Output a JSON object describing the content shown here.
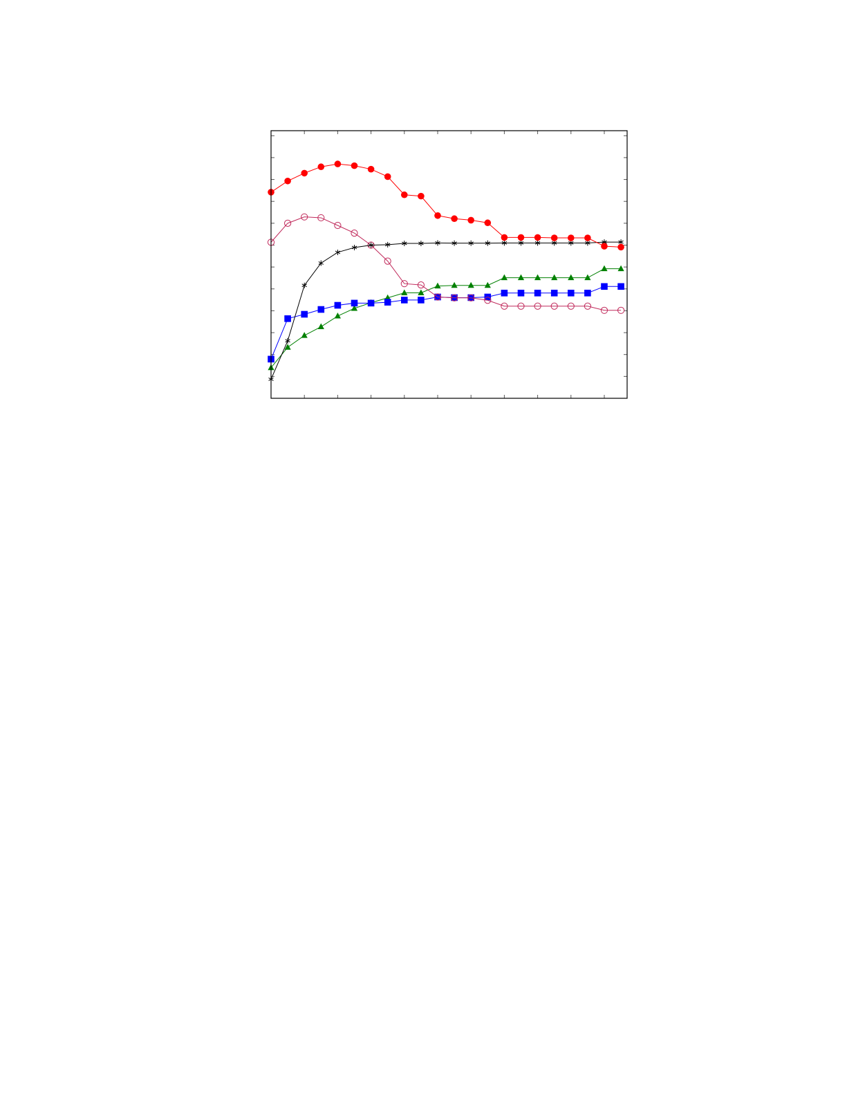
{
  "chart_data": {
    "type": "line",
    "title": "",
    "xlabel": "",
    "ylabel": "",
    "xlim": [
      0,
      21.37
    ],
    "ylim": [
      0,
      12.23
    ],
    "x_ticks": [
      0,
      2,
      4,
      6,
      8,
      10,
      12,
      14,
      16,
      18,
      20
    ],
    "y_ticks": [
      1,
      2,
      3,
      4,
      5,
      6,
      7,
      8,
      9,
      10,
      11,
      12
    ],
    "tick_labels_shown": false,
    "grid": false,
    "legend": "none",
    "x": [
      0,
      1,
      2,
      3,
      4,
      5,
      6,
      7,
      8,
      9,
      10,
      11,
      12,
      13,
      14,
      15,
      16,
      17,
      18,
      19,
      20,
      21
    ],
    "series": [
      {
        "color": "#008000",
        "marker": "filled-triangle",
        "values": [
          1.4,
          2.33,
          2.87,
          3.27,
          3.76,
          4.11,
          4.37,
          4.59,
          4.82,
          4.82,
          5.13,
          5.16,
          5.16,
          5.16,
          5.51,
          5.51,
          5.51,
          5.51,
          5.51,
          5.51,
          5.92,
          5.92
        ]
      },
      {
        "color": "#0000ff",
        "marker": "filled-square",
        "values": [
          1.79,
          3.64,
          3.84,
          4.06,
          4.25,
          4.35,
          4.35,
          4.39,
          4.49,
          4.49,
          4.63,
          4.6,
          4.6,
          4.63,
          4.81,
          4.81,
          4.81,
          4.81,
          4.81,
          4.81,
          5.11,
          5.11
        ]
      },
      {
        "color": "#c0285a",
        "marker": "open-circle",
        "values": [
          7.13,
          8.0,
          8.29,
          8.25,
          7.9,
          7.55,
          7.0,
          6.27,
          5.24,
          5.18,
          4.63,
          4.59,
          4.59,
          4.48,
          4.21,
          4.21,
          4.21,
          4.21,
          4.21,
          4.21,
          4.02,
          4.02
        ]
      },
      {
        "color": "#000000",
        "marker": "star",
        "values": [
          0.87,
          2.63,
          5.16,
          6.18,
          6.67,
          6.89,
          7.0,
          7.02,
          7.08,
          7.08,
          7.1,
          7.09,
          7.09,
          7.09,
          7.1,
          7.1,
          7.1,
          7.1,
          7.1,
          7.1,
          7.14,
          7.14
        ]
      },
      {
        "color": "#ff0000",
        "marker": "filled-circle",
        "values": [
          9.42,
          9.93,
          10.29,
          10.58,
          10.71,
          10.63,
          10.47,
          10.13,
          9.3,
          9.24,
          8.35,
          8.21,
          8.14,
          8.02,
          7.35,
          7.35,
          7.35,
          7.33,
          7.33,
          7.33,
          6.95,
          6.91
        ]
      }
    ]
  }
}
